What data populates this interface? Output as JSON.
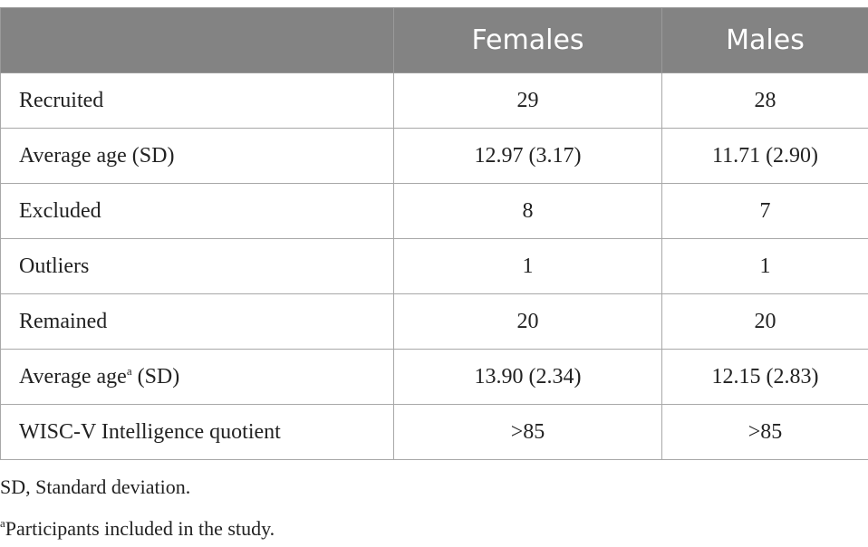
{
  "table": {
    "header": [
      "Females",
      "Males"
    ],
    "rows": [
      [
        "Recruited",
        "29",
        "28"
      ],
      [
        "Average age (SD)",
        "12.97 (3.17)",
        "11.71 (2.90)"
      ],
      [
        "Excluded",
        "8",
        "7"
      ],
      [
        "Outliers",
        "1",
        "1"
      ],
      [
        "Remained",
        "20",
        "20"
      ],
      [
        [
          "Average age",
          "a",
          " (SD)"
        ],
        "13.90 (2.34)",
        "12.15 (2.83)"
      ],
      [
        "WISC-V Intelligence quotient",
        ">85",
        ">85"
      ]
    ]
  },
  "footnotes": [
    "SD, Standard deviation.",
    [
      "a",
      "Participants included in the study."
    ]
  ]
}
